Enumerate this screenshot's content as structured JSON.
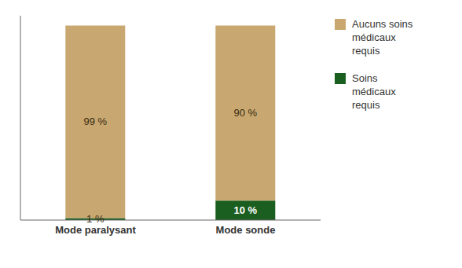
{
  "chart_data": {
    "type": "bar",
    "stacked": true,
    "categories": [
      "Mode paralysant",
      "Mode sonde"
    ],
    "series": [
      {
        "name": "Soins\nmédicaux\nrequis",
        "color": "#1A5E20",
        "values": [
          1,
          10
        ],
        "value_labels": [
          "1 %",
          "10 %"
        ]
      },
      {
        "name": "Aucuns soins\nmédicaux\nrequis",
        "color": "#C8A870",
        "values": [
          99,
          90
        ],
        "value_labels": [
          "99 %",
          "90 %"
        ]
      }
    ],
    "ylim": [
      0,
      105
    ],
    "yticks": [],
    "tick_labels": "x",
    "data_labels": true,
    "legend": "right",
    "grid": false
  }
}
